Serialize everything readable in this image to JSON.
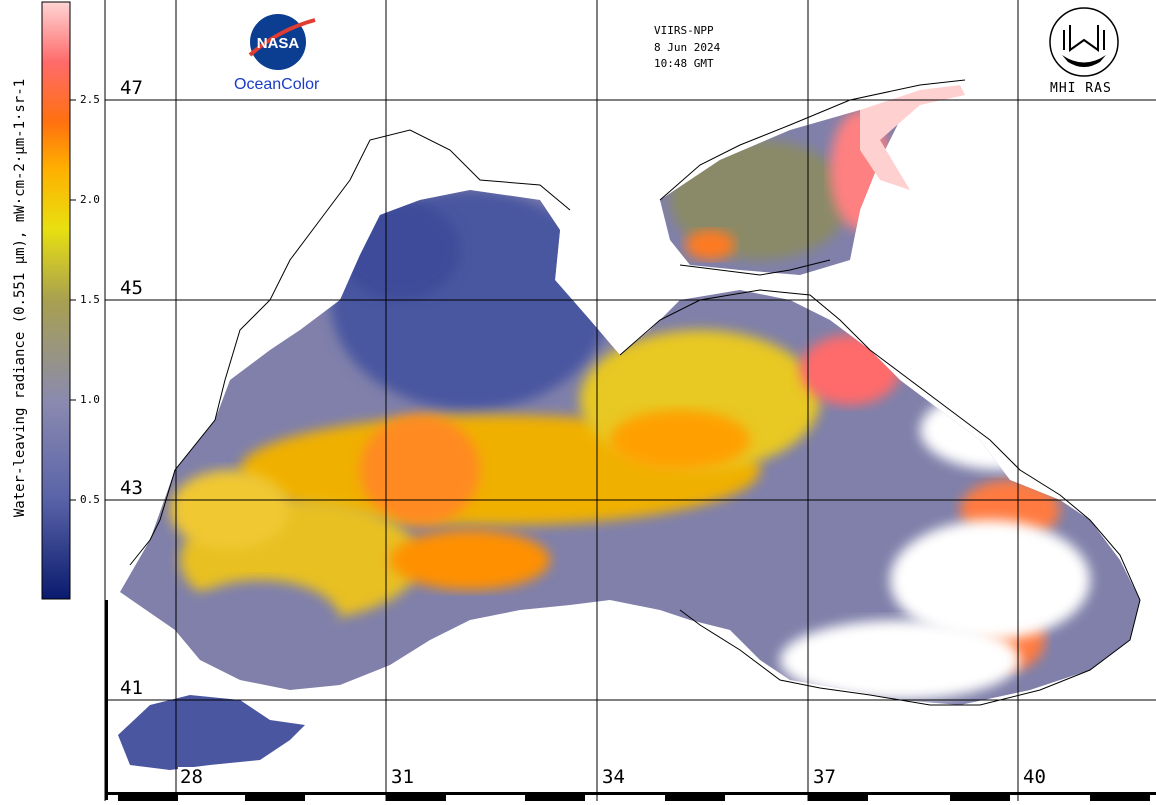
{
  "satellite": "VIIRS-NPP",
  "date": "8 Jun 2024",
  "time": "10:48 GMT",
  "logos": {
    "nasa": "NASA",
    "ocean_color": "OceanColor",
    "institute": "MHI RAS"
  },
  "colorbar": {
    "title": "Water-leaving radiance (0.551 µm), mW·cm-2·µm-1·sr-1",
    "ticks": [
      "2.5",
      "2.0",
      "1.5",
      "1.0",
      "0.5"
    ],
    "tick_values": [
      2.5,
      2.0,
      1.5,
      1.0,
      0.5
    ],
    "range": [
      0,
      3.0
    ],
    "colors": [
      "#0a1a6e",
      "#5a64a8",
      "#8a8ab0",
      "#a8a050",
      "#e8e010",
      "#ffb000",
      "#ff7010",
      "#ff6b6b",
      "#ffd4d4"
    ]
  },
  "latitudes": [
    "47",
    "45",
    "43",
    "41"
  ],
  "longitudes": [
    "28",
    "31",
    "34",
    "37",
    "40"
  ]
}
